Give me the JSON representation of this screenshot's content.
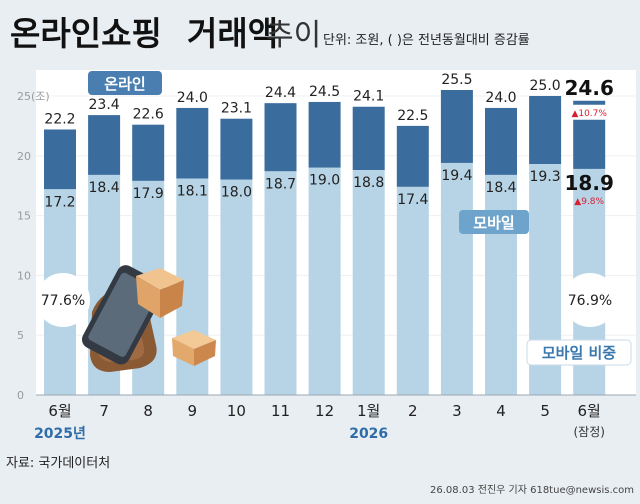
{
  "header": {
    "title_main": "온라인쇼핑",
    "title_bold": "거래액",
    "title_light": "추이",
    "unit_note": "단위: 조원, ( )은 전년동월대비 증감률"
  },
  "legend": {
    "online": "온라인",
    "mobile": "모바일",
    "mobile_share": "모바일 비중"
  },
  "colors": {
    "online": "#3a6d9e",
    "mobile": "#b7d4e6",
    "label_box": "#4a7eb0",
    "accent_red": "#d8202f",
    "background": "#e9eef3"
  },
  "chart_data": {
    "type": "bar",
    "stacked_overlay": true,
    "categories": [
      "6월",
      "7",
      "8",
      "9",
      "10",
      "11",
      "12",
      "1월",
      "2",
      "3",
      "4",
      "5",
      "6월"
    ],
    "year_labels": [
      {
        "text": "2025년",
        "index": 0
      },
      {
        "text": "2026",
        "index": 7
      }
    ],
    "last_category_sub": "(잠정)",
    "series": [
      {
        "name": "온라인",
        "values": [
          22.2,
          23.4,
          22.6,
          24.0,
          23.1,
          24.4,
          24.5,
          24.1,
          22.5,
          25.5,
          24.0,
          25.0,
          24.6
        ]
      },
      {
        "name": "모바일",
        "values": [
          17.2,
          18.4,
          17.9,
          18.1,
          18.0,
          18.7,
          19.0,
          18.8,
          17.4,
          19.4,
          18.4,
          19.3,
          18.9
        ]
      }
    ],
    "value_labels": {
      "online": [
        "22.2",
        "23.4",
        "22.6",
        "24.0",
        "23.1",
        "24.4",
        "24.5",
        "24.1",
        "22.5",
        "25.5",
        "24.0",
        "25.0",
        "24.6"
      ],
      "mobile": [
        "17.2",
        "18.4",
        "17.9",
        "18.1",
        "18.0",
        "18.7",
        "19.0",
        "18.8",
        "17.4",
        "19.4",
        "18.4",
        "19.3",
        "18.9"
      ]
    },
    "yoy": {
      "online": "▲10.7%",
      "mobile": "▲9.8%"
    },
    "mobile_share": {
      "first": "77.6%",
      "last": "76.9%"
    },
    "y_ticks": [
      {
        "value": 0,
        "label": "0"
      },
      {
        "value": 5,
        "label": "5"
      },
      {
        "value": 10,
        "label": "10"
      },
      {
        "value": 15,
        "label": "15"
      },
      {
        "value": 20,
        "label": "20"
      },
      {
        "value": 25,
        "label": "25(조)"
      }
    ],
    "ylim": [
      0,
      25.5
    ]
  },
  "footer": {
    "source": "자료: 국가데이터처",
    "credit": "26.08.03 전진우 기자 618tue@newsis.com"
  }
}
